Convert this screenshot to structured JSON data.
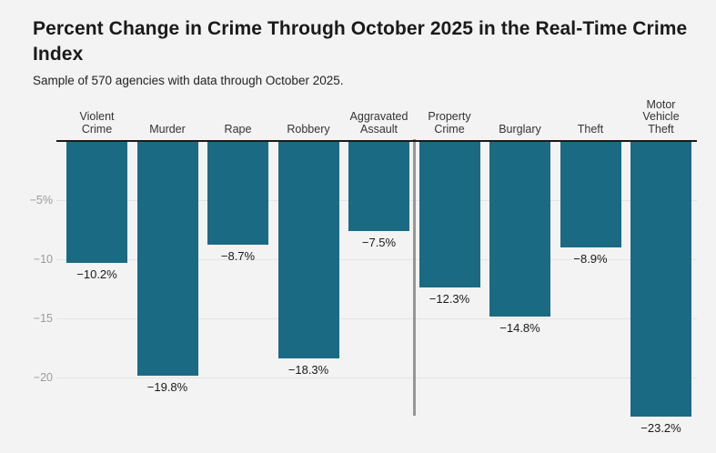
{
  "header": {
    "title": "Percent Change in Crime Through October 2025 in the Real-Time Crime Index",
    "subtitle": "Sample of 570 agencies with data through October 2025."
  },
  "colors": {
    "background": "#f3f3f3",
    "bar": "#1b6a83",
    "axis_line": "#1a1a1a",
    "gridline": "#e4e4e4",
    "divider": "#979797",
    "tick_text": "#9b9b9b",
    "category_text": "#333333",
    "value_text": "#1a1a1a"
  },
  "chart_data": {
    "type": "bar",
    "title": "Percent Change in Crime Through October 2025 in the Real-Time Crime Index",
    "subtitle": "Sample of 570 agencies with data through October 2025.",
    "categories": [
      "Violent Crime",
      "Murder",
      "Rape",
      "Robbery",
      "Aggravated Assault",
      "Property Crime",
      "Burglary",
      "Theft",
      "Motor Vehicle Theft"
    ],
    "category_lines": [
      [
        "Violent",
        "Crime"
      ],
      [
        "Murder"
      ],
      [
        "Rape"
      ],
      [
        "Robbery"
      ],
      [
        "Aggravated",
        "Assault"
      ],
      [
        "Property",
        "Crime"
      ],
      [
        "Burglary"
      ],
      [
        "Theft"
      ],
      [
        "Motor",
        "Vehicle",
        "Theft"
      ]
    ],
    "values": [
      -10.2,
      -19.8,
      -8.7,
      -18.3,
      -7.5,
      -12.3,
      -14.8,
      -8.9,
      -23.2
    ],
    "value_labels": [
      "−10.2%",
      "−19.8%",
      "−8.7%",
      "−18.3%",
      "−7.5%",
      "−12.3%",
      "−14.8%",
      "−8.9%",
      "−23.2%"
    ],
    "yticks": [
      {
        "value": -5,
        "label": "−5%"
      },
      {
        "value": -10,
        "label": "−10"
      },
      {
        "value": -15,
        "label": "−15"
      },
      {
        "value": -20,
        "label": "−20"
      }
    ],
    "ylim": [
      -25,
      0
    ],
    "xlabel": "",
    "ylabel": "",
    "grid": true,
    "legend": "none",
    "divider_after_index": 4
  }
}
